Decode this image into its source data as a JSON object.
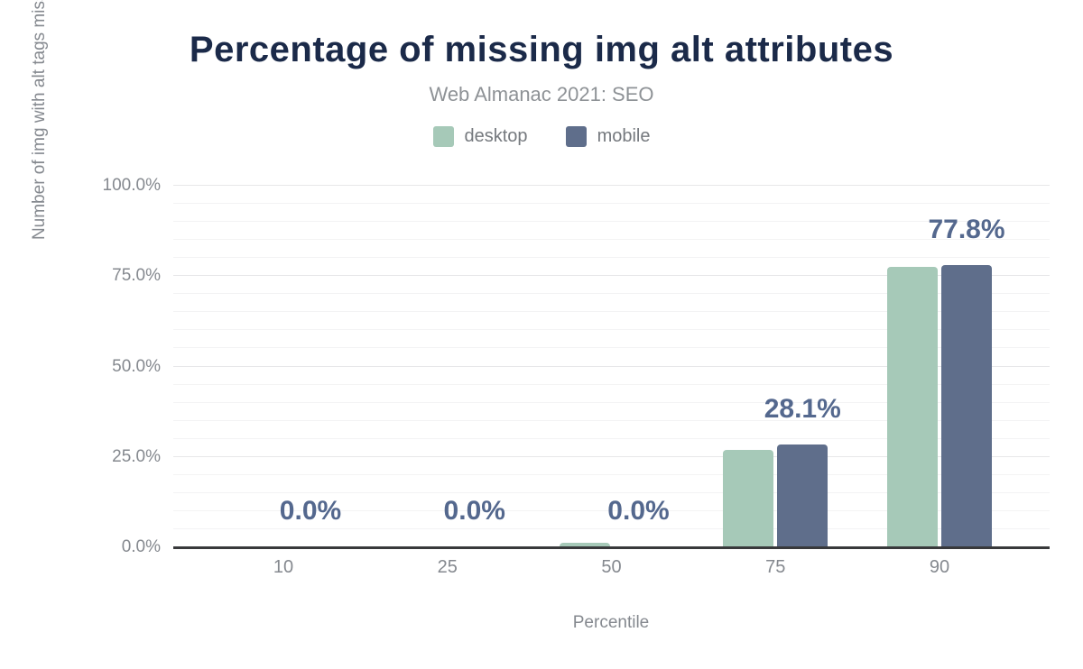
{
  "chart_data": {
    "type": "bar",
    "title": "Percentage of missing img alt attributes",
    "subtitle": "Web Almanac 2021: SEO",
    "xlabel": "Percentile",
    "ylabel": "Number of img with alt tags missing",
    "categories": [
      "10",
      "25",
      "50",
      "75",
      "90"
    ],
    "series": [
      {
        "name": "desktop",
        "color": "#a6c9b8",
        "values": [
          0,
          0,
          1.0,
          26.8,
          77.2
        ]
      },
      {
        "name": "mobile",
        "color": "#5f6e8b",
        "values": [
          0,
          0,
          0.0,
          28.1,
          77.8
        ]
      }
    ],
    "data_labels": [
      "0.0%",
      "0.0%",
      "0.0%",
      "28.1%",
      "77.8%"
    ],
    "data_labels_follow_series": "mobile",
    "y_ticks": [
      {
        "value": 0,
        "label": "0.0%"
      },
      {
        "value": 25,
        "label": "25.0%"
      },
      {
        "value": 50,
        "label": "50.0%"
      },
      {
        "value": 75,
        "label": "75.0%"
      },
      {
        "value": 100,
        "label": "100.0%"
      }
    ],
    "ylim": [
      0,
      100
    ],
    "grid": {
      "horizontal": true,
      "minor_step_pct": 5,
      "major_step_pct": 25,
      "vertical": false
    },
    "legend_position": "top"
  },
  "colors": {
    "title": "#1b2a49",
    "subtitle": "#8e9296",
    "axis_text": "#85898f",
    "data_label": "#54688e",
    "baseline": "#38393b",
    "gridline_major": "#e7e7e9",
    "gridline_minor": "#f3f3f4",
    "desktop": "#a6c9b8",
    "mobile": "#5f6e8b"
  }
}
